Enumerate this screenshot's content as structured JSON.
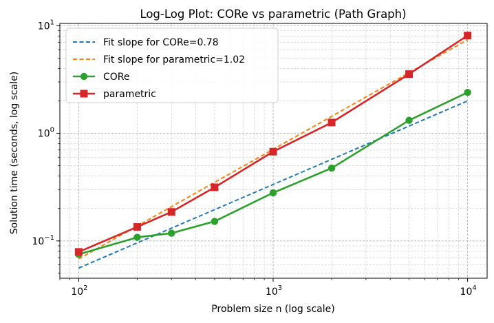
{
  "chart_data": {
    "type": "line",
    "title": "Log-Log Plot: CORe vs parametric (Path Graph)",
    "xlabel": "Problem size n (log scale)",
    "ylabel": "Solution time (seconds, log scale)",
    "xscale": "log",
    "yscale": "log",
    "xlim": [
      80,
      12600
    ],
    "ylim": [
      0.045,
      10.5
    ],
    "x_ticks": [
      {
        "value": 100,
        "base": "10",
        "exp": "2"
      },
      {
        "value": 1000,
        "base": "10",
        "exp": "3"
      },
      {
        "value": 10000,
        "base": "10",
        "exp": "4"
      }
    ],
    "y_ticks": [
      {
        "value": 0.1,
        "base": "10",
        "exp": "−1"
      },
      {
        "value": 1,
        "base": "10",
        "exp": "0"
      },
      {
        "value": 10,
        "base": "10",
        "exp": "1"
      }
    ],
    "grid": true,
    "legend_position": "top-left",
    "x": [
      100,
      200,
      300,
      500,
      1000,
      2000,
      5000,
      10000
    ],
    "series": [
      {
        "name": "Fit slope for CORe=0.78",
        "style": "dashed",
        "color": "#1f77b4",
        "x": [
          100,
          10000
        ],
        "values": [
          0.056,
          2.0
        ]
      },
      {
        "name": "Fit slope for parametric=1.02",
        "style": "dashed",
        "color": "#ff7f0e",
        "x": [
          100,
          10000
        ],
        "values": [
          0.068,
          7.4
        ]
      },
      {
        "name": "CORe",
        "style": "solid",
        "marker": "circle",
        "color": "#2ca02c",
        "values": [
          0.075,
          0.108,
          0.118,
          0.152,
          0.28,
          0.475,
          1.32,
          2.4
        ]
      },
      {
        "name": "parametric",
        "style": "solid",
        "marker": "square",
        "color": "#d62728",
        "values": [
          0.079,
          0.135,
          0.186,
          0.315,
          0.675,
          1.26,
          3.55,
          8.1
        ]
      }
    ]
  }
}
